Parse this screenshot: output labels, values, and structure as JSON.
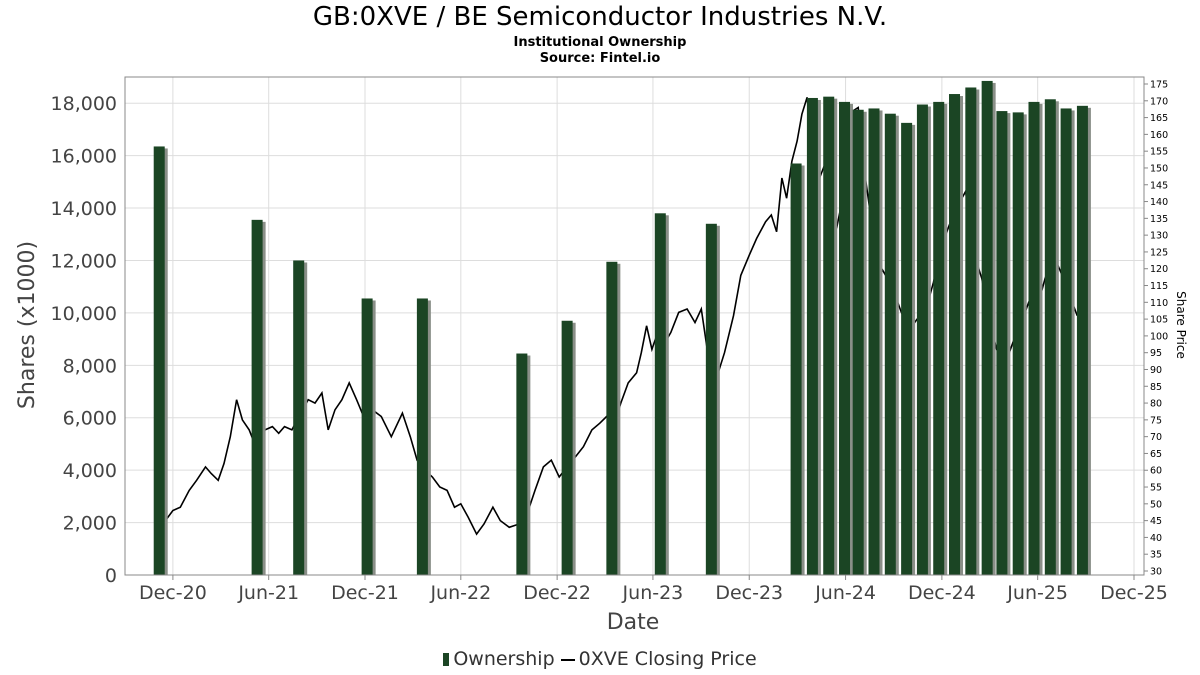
{
  "title": "GB:0XVE / BE Semiconductor Industries N.V.",
  "subtitle1": "Institutional Ownership",
  "subtitle2": "Source: Fintel.io",
  "colors": {
    "bar": "#1b4524",
    "bar_shadow": "#8a8f88",
    "price_line": "#000000",
    "grid": "#dddddd"
  },
  "chart_data": {
    "type": "bar",
    "xlabel": "Date",
    "ylabel": "Shares (x1000)",
    "y2label": "Share Price",
    "ylim": [
      0,
      19000
    ],
    "y2lim": [
      30,
      175
    ],
    "yticks": [
      0,
      2000,
      4000,
      6000,
      8000,
      10000,
      12000,
      14000,
      16000,
      18000
    ],
    "ytick_labels": [
      "0",
      "2,000",
      "4,000",
      "6,000",
      "8,000",
      "10,000",
      "12,000",
      "14,000",
      "16,000",
      "18,000"
    ],
    "y2ticks": [
      30,
      35,
      40,
      45,
      50,
      55,
      60,
      65,
      70,
      75,
      80,
      85,
      90,
      95,
      100,
      105,
      110,
      115,
      120,
      125,
      130,
      135,
      140,
      145,
      150,
      155,
      160,
      165,
      170,
      175
    ],
    "xlim": [
      "2020-09-01",
      "2025-12-20"
    ],
    "xticks": [
      {
        "date": "2020-12-01",
        "label": "Dec-20"
      },
      {
        "date": "2021-06-01",
        "label": "Jun-21"
      },
      {
        "date": "2021-12-01",
        "label": "Dec-21"
      },
      {
        "date": "2022-06-01",
        "label": "Jun-22"
      },
      {
        "date": "2022-12-01",
        "label": "Dec-22"
      },
      {
        "date": "2023-06-01",
        "label": "Jun-23"
      },
      {
        "date": "2023-12-01",
        "label": "Dec-23"
      },
      {
        "date": "2024-06-01",
        "label": "Jun-24"
      },
      {
        "date": "2024-12-01",
        "label": "Dec-24"
      },
      {
        "date": "2025-06-01",
        "label": "Jun-25"
      },
      {
        "date": "2025-12-01",
        "label": "Dec-25"
      }
    ],
    "grid": true,
    "legend_position": "bottom-center",
    "series": [
      {
        "name": "Ownership",
        "type": "bar",
        "axis": "left",
        "points": [
          {
            "date": "2020-11-05",
            "value": 16350
          },
          {
            "date": "2021-05-10",
            "value": 13550
          },
          {
            "date": "2021-07-28",
            "value": 12000
          },
          {
            "date": "2021-12-05",
            "value": 10550
          },
          {
            "date": "2022-03-20",
            "value": 10550
          },
          {
            "date": "2022-09-25",
            "value": 8450
          },
          {
            "date": "2022-12-20",
            "value": 9700
          },
          {
            "date": "2023-03-15",
            "value": 11950
          },
          {
            "date": "2023-06-15",
            "value": 13800
          },
          {
            "date": "2023-09-20",
            "value": 13400
          },
          {
            "date": "2024-02-28",
            "value": 15700
          },
          {
            "date": "2024-03-30",
            "value": 18200
          },
          {
            "date": "2024-04-30",
            "value": 18250
          },
          {
            "date": "2024-05-30",
            "value": 18050
          },
          {
            "date": "2024-06-25",
            "value": 17750
          },
          {
            "date": "2024-07-25",
            "value": 17800
          },
          {
            "date": "2024-08-25",
            "value": 17600
          },
          {
            "date": "2024-09-25",
            "value": 17250
          },
          {
            "date": "2024-10-25",
            "value": 17950
          },
          {
            "date": "2024-11-25",
            "value": 18050
          },
          {
            "date": "2024-12-25",
            "value": 18350
          },
          {
            "date": "2025-01-25",
            "value": 18600
          },
          {
            "date": "2025-02-25",
            "value": 18850
          },
          {
            "date": "2025-03-25",
            "value": 17700
          },
          {
            "date": "2025-04-25",
            "value": 17650
          },
          {
            "date": "2025-05-25",
            "value": 18050
          },
          {
            "date": "2025-06-25",
            "value": 18150
          },
          {
            "date": "2025-07-25",
            "value": 17800
          },
          {
            "date": "2025-08-25",
            "value": 17900
          }
        ]
      },
      {
        "name": "0XVE Closing Price",
        "type": "line",
        "axis": "right",
        "points": [
          {
            "date": "2020-11-12",
            "value": 44
          },
          {
            "date": "2020-12-01",
            "value": 48
          },
          {
            "date": "2020-12-15",
            "value": 49
          },
          {
            "date": "2021-01-01",
            "value": 54
          },
          {
            "date": "2021-01-15",
            "value": 57
          },
          {
            "date": "2021-02-01",
            "value": 61
          },
          {
            "date": "2021-02-12",
            "value": 59
          },
          {
            "date": "2021-02-25",
            "value": 57
          },
          {
            "date": "2021-03-08",
            "value": 62
          },
          {
            "date": "2021-03-20",
            "value": 70
          },
          {
            "date": "2021-04-01",
            "value": 81
          },
          {
            "date": "2021-04-12",
            "value": 75
          },
          {
            "date": "2021-04-25",
            "value": 72
          },
          {
            "date": "2021-05-10",
            "value": 66
          },
          {
            "date": "2021-05-25",
            "value": 72
          },
          {
            "date": "2021-06-08",
            "value": 73
          },
          {
            "date": "2021-06-20",
            "value": 71
          },
          {
            "date": "2021-07-01",
            "value": 73
          },
          {
            "date": "2021-07-15",
            "value": 72
          },
          {
            "date": "2021-08-01",
            "value": 77
          },
          {
            "date": "2021-08-15",
            "value": 81
          },
          {
            "date": "2021-08-28",
            "value": 80
          },
          {
            "date": "2021-09-10",
            "value": 83
          },
          {
            "date": "2021-09-22",
            "value": 72
          },
          {
            "date": "2021-10-05",
            "value": 78
          },
          {
            "date": "2021-10-18",
            "value": 81
          },
          {
            "date": "2021-11-01",
            "value": 86
          },
          {
            "date": "2021-11-15",
            "value": 81
          },
          {
            "date": "2021-12-01",
            "value": 75
          },
          {
            "date": "2021-12-15",
            "value": 78
          },
          {
            "date": "2022-01-01",
            "value": 76
          },
          {
            "date": "2022-01-20",
            "value": 70
          },
          {
            "date": "2022-02-10",
            "value": 77
          },
          {
            "date": "2022-02-25",
            "value": 70
          },
          {
            "date": "2022-03-10",
            "value": 63
          },
          {
            "date": "2022-03-25",
            "value": 60
          },
          {
            "date": "2022-04-08",
            "value": 58
          },
          {
            "date": "2022-04-22",
            "value": 55
          },
          {
            "date": "2022-05-06",
            "value": 54
          },
          {
            "date": "2022-05-20",
            "value": 49
          },
          {
            "date": "2022-06-01",
            "value": 50
          },
          {
            "date": "2022-06-15",
            "value": 46
          },
          {
            "date": "2022-07-01",
            "value": 41
          },
          {
            "date": "2022-07-15",
            "value": 44
          },
          {
            "date": "2022-08-01",
            "value": 49
          },
          {
            "date": "2022-08-15",
            "value": 45
          },
          {
            "date": "2022-09-01",
            "value": 43
          },
          {
            "date": "2022-09-20",
            "value": 44
          },
          {
            "date": "2022-10-05",
            "value": 47
          },
          {
            "date": "2022-10-20",
            "value": 54
          },
          {
            "date": "2022-11-05",
            "value": 61
          },
          {
            "date": "2022-11-20",
            "value": 63
          },
          {
            "date": "2022-12-05",
            "value": 58
          },
          {
            "date": "2022-12-20",
            "value": 61
          },
          {
            "date": "2023-01-05",
            "value": 64
          },
          {
            "date": "2023-01-20",
            "value": 67
          },
          {
            "date": "2023-02-05",
            "value": 72
          },
          {
            "date": "2023-02-20",
            "value": 74
          },
          {
            "date": "2023-03-05",
            "value": 76
          },
          {
            "date": "2023-03-20",
            "value": 74
          },
          {
            "date": "2023-04-01",
            "value": 80
          },
          {
            "date": "2023-04-15",
            "value": 86
          },
          {
            "date": "2023-05-01",
            "value": 89
          },
          {
            "date": "2023-05-10",
            "value": 95
          },
          {
            "date": "2023-05-20",
            "value": 103
          },
          {
            "date": "2023-05-30",
            "value": 96
          },
          {
            "date": "2023-06-08",
            "value": 100
          },
          {
            "date": "2023-06-20",
            "value": 97
          },
          {
            "date": "2023-07-05",
            "value": 101
          },
          {
            "date": "2023-07-20",
            "value": 107
          },
          {
            "date": "2023-08-05",
            "value": 108
          },
          {
            "date": "2023-08-20",
            "value": 104
          },
          {
            "date": "2023-09-01",
            "value": 108
          },
          {
            "date": "2023-09-15",
            "value": 93
          },
          {
            "date": "2023-10-01",
            "value": 88
          },
          {
            "date": "2023-10-15",
            "value": 95
          },
          {
            "date": "2023-11-01",
            "value": 106
          },
          {
            "date": "2023-11-15",
            "value": 118
          },
          {
            "date": "2023-12-01",
            "value": 124
          },
          {
            "date": "2023-12-15",
            "value": 129
          },
          {
            "date": "2024-01-01",
            "value": 134
          },
          {
            "date": "2024-01-12",
            "value": 136
          },
          {
            "date": "2024-01-22",
            "value": 131
          },
          {
            "date": "2024-02-01",
            "value": 147
          },
          {
            "date": "2024-02-10",
            "value": 141
          },
          {
            "date": "2024-02-20",
            "value": 152
          },
          {
            "date": "2024-03-01",
            "value": 158
          },
          {
            "date": "2024-03-10",
            "value": 166
          },
          {
            "date": "2024-03-20",
            "value": 171
          },
          {
            "date": "2024-03-28",
            "value": 160
          },
          {
            "date": "2024-04-10",
            "value": 146
          },
          {
            "date": "2024-04-25",
            "value": 152
          },
          {
            "date": "2024-05-05",
            "value": 145
          },
          {
            "date": "2024-05-15",
            "value": 132
          },
          {
            "date": "2024-05-25",
            "value": 140
          },
          {
            "date": "2024-06-05",
            "value": 148
          },
          {
            "date": "2024-06-15",
            "value": 167
          },
          {
            "date": "2024-06-25",
            "value": 168
          },
          {
            "date": "2024-07-05",
            "value": 151
          },
          {
            "date": "2024-07-15",
            "value": 140
          },
          {
            "date": "2024-07-25",
            "value": 128
          },
          {
            "date": "2024-08-05",
            "value": 121
          },
          {
            "date": "2024-08-20",
            "value": 117
          },
          {
            "date": "2024-09-01",
            "value": 113
          },
          {
            "date": "2024-09-15",
            "value": 107
          },
          {
            "date": "2024-10-01",
            "value": 102
          },
          {
            "date": "2024-10-15",
            "value": 105
          },
          {
            "date": "2024-11-01",
            "value": 108
          },
          {
            "date": "2024-11-15",
            "value": 116
          },
          {
            "date": "2024-12-01",
            "value": 127
          },
          {
            "date": "2024-12-15",
            "value": 133
          },
          {
            "date": "2025-01-01",
            "value": 139
          },
          {
            "date": "2025-01-15",
            "value": 143
          },
          {
            "date": "2025-02-01",
            "value": 124
          },
          {
            "date": "2025-02-15",
            "value": 117
          },
          {
            "date": "2025-03-01",
            "value": 105
          },
          {
            "date": "2025-03-15",
            "value": 96
          },
          {
            "date": "2025-04-01",
            "value": 92
          },
          {
            "date": "2025-04-15",
            "value": 98
          },
          {
            "date": "2025-05-01",
            "value": 104
          },
          {
            "date": "2025-05-15",
            "value": 110
          },
          {
            "date": "2025-06-01",
            "value": 109
          },
          {
            "date": "2025-06-15",
            "value": 117
          },
          {
            "date": "2025-07-01",
            "value": 124
          },
          {
            "date": "2025-07-15",
            "value": 119
          },
          {
            "date": "2025-08-01",
            "value": 112
          },
          {
            "date": "2025-08-15",
            "value": 106
          }
        ]
      }
    ]
  }
}
